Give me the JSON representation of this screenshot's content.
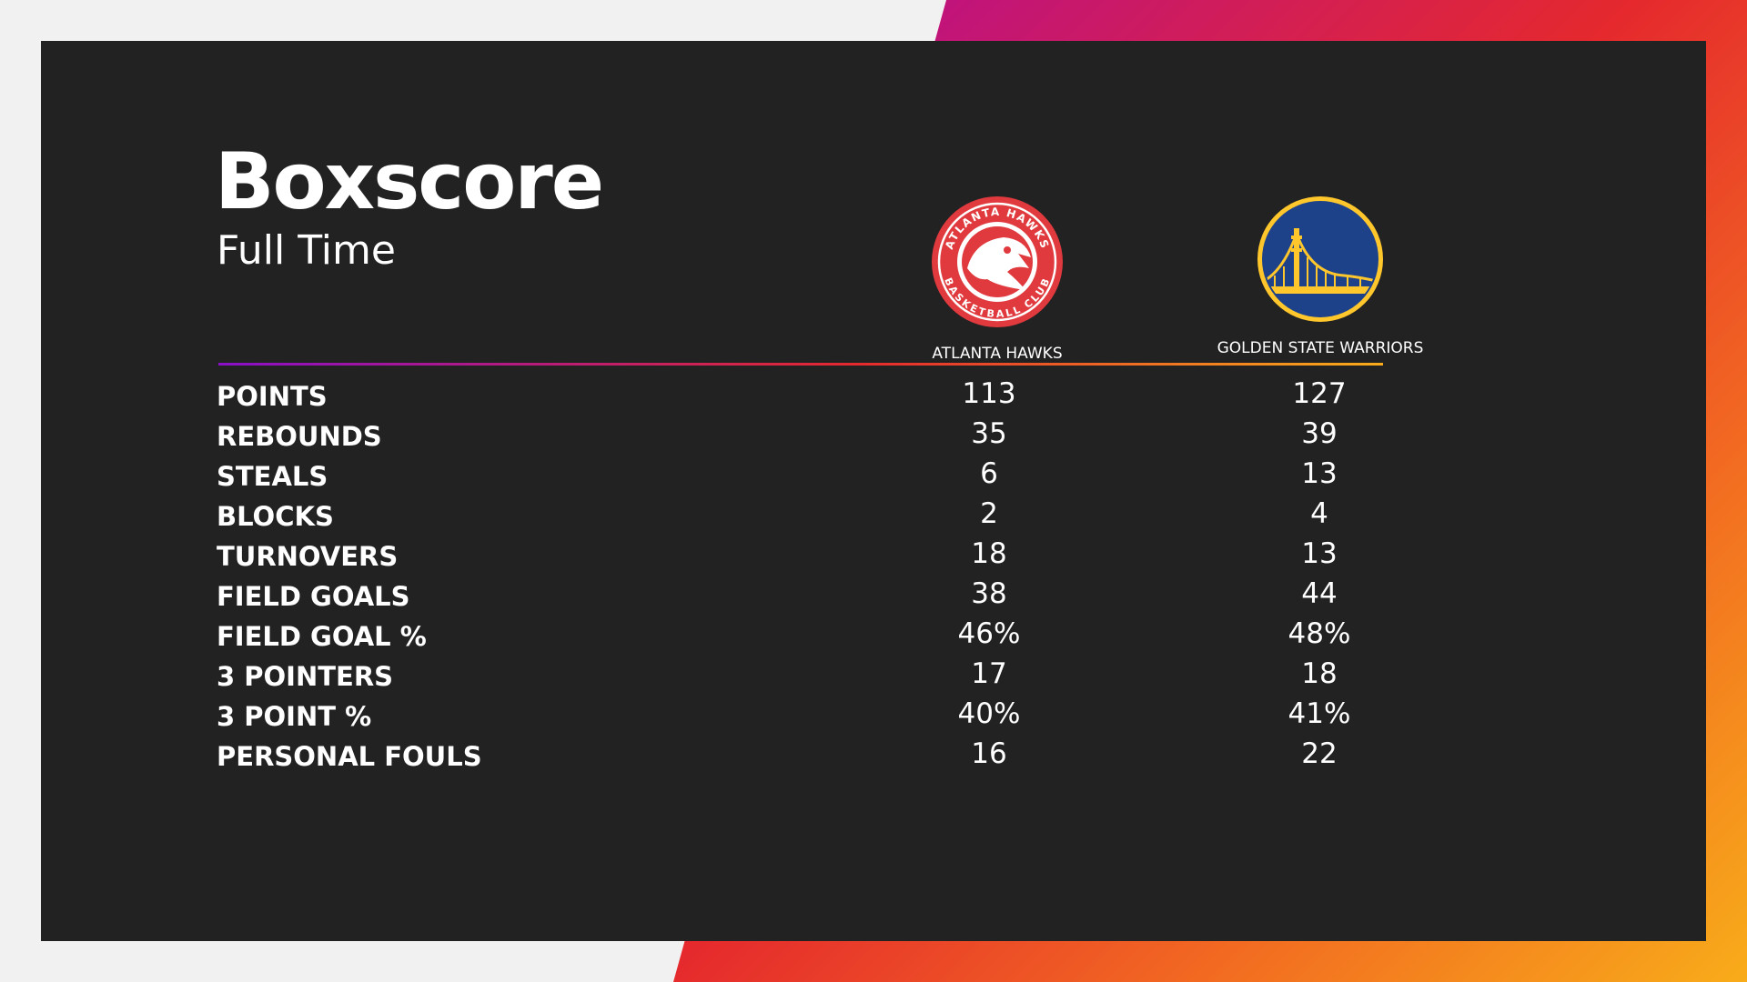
{
  "header": {
    "title": "Boxscore",
    "subtitle": "Full Time"
  },
  "teams": {
    "home": {
      "name": "ATLANTA HAWKS",
      "logo": "atlanta-hawks-logo",
      "logo_text_top": "ATLANTA HAWKS",
      "logo_text_bottom": "BASKETBALL CLUB",
      "color": "#e03a3e"
    },
    "away": {
      "name": "GOLDEN STATE WARRIORS",
      "logo": "golden-state-warriors-logo",
      "color": "#1d428a",
      "accent": "#ffc72c"
    }
  },
  "stats": [
    {
      "label": "POINTS",
      "home": "113",
      "away": "127"
    },
    {
      "label": "REBOUNDS",
      "home": "35",
      "away": "39"
    },
    {
      "label": "STEALS",
      "home": "6",
      "away": "13"
    },
    {
      "label": "BLOCKS",
      "home": "2",
      "away": "4"
    },
    {
      "label": "TURNOVERS",
      "home": "18",
      "away": "13"
    },
    {
      "label": "FIELD GOALS",
      "home": "38",
      "away": "44"
    },
    {
      "label": "FIELD GOAL %",
      "home": "46%",
      "away": "48%"
    },
    {
      "label": "3 POINTERS",
      "home": "17",
      "away": "18"
    },
    {
      "label": "3 POINT %",
      "home": "40%",
      "away": "41%"
    },
    {
      "label": "PERSONAL FOULS",
      "home": "16",
      "away": "22"
    }
  ],
  "colors": {
    "panel": "#222222",
    "gradient_start": "#8a0fc7",
    "gradient_mid": "#e5292d",
    "gradient_end": "#f8ac1a"
  }
}
